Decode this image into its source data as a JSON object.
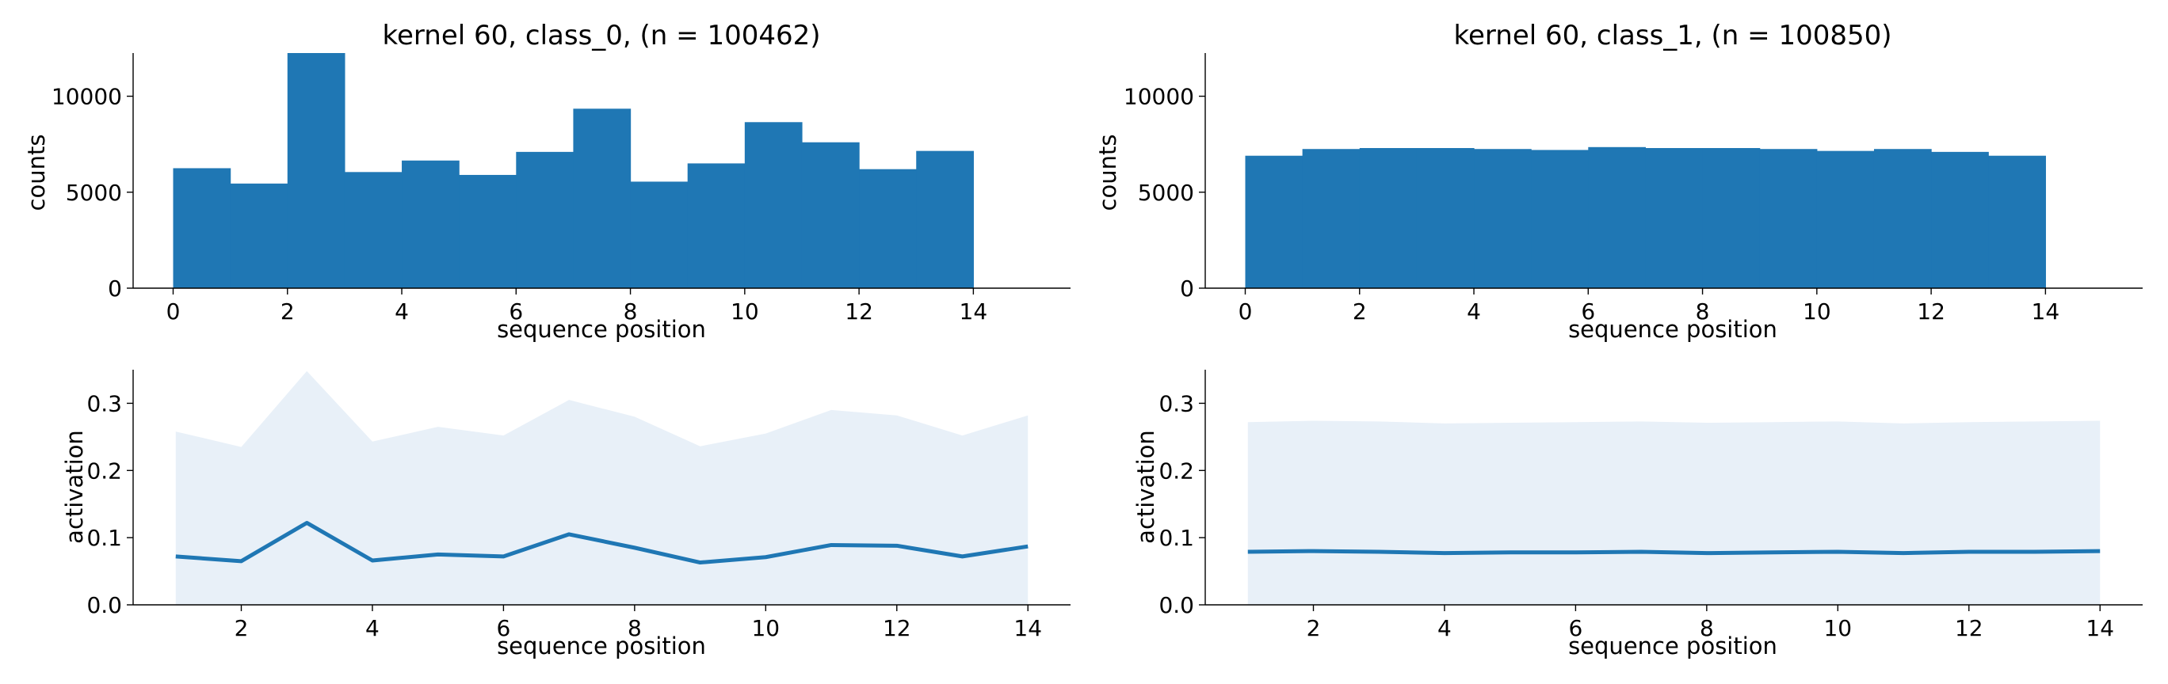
{
  "chart_data": [
    {
      "type": "bar",
      "title": "kernel 60, class_0, (n = 100462)",
      "xlabel": "sequence position",
      "ylabel": "counts",
      "bin_edges": [
        0,
        1,
        2,
        3,
        4,
        5,
        6,
        7,
        8,
        9,
        10,
        11,
        12,
        13,
        14
      ],
      "values": [
        6250,
        5450,
        12250,
        6050,
        6650,
        5900,
        7100,
        9350,
        5550,
        6500,
        8650,
        7600,
        6200,
        7150
      ],
      "xlim": [
        -0.7,
        15.7
      ],
      "ylim": [
        0,
        12250
      ],
      "xticks": [
        "0",
        "2",
        "4",
        "6",
        "8",
        "10",
        "12",
        "14"
      ],
      "yticks": [
        "0",
        "5000",
        "10000"
      ],
      "color": "#1f77b4"
    },
    {
      "type": "bar",
      "title": "kernel 60, class_1, (n = 100850)",
      "xlabel": "sequence position",
      "ylabel": "counts",
      "bin_edges": [
        0,
        1,
        2,
        3,
        4,
        5,
        6,
        7,
        8,
        9,
        10,
        11,
        12,
        13,
        14
      ],
      "values": [
        6900,
        7250,
        7300,
        7300,
        7250,
        7200,
        7350,
        7300,
        7300,
        7250,
        7150,
        7250,
        7100,
        6900
      ],
      "xlim": [
        -0.7,
        15.7
      ],
      "ylim": [
        0,
        12250
      ],
      "xticks": [
        "0",
        "2",
        "4",
        "6",
        "8",
        "10",
        "12",
        "14"
      ],
      "yticks": [
        "0",
        "5000",
        "10000"
      ],
      "color": "#1f77b4"
    },
    {
      "type": "line",
      "xlabel": "sequence position",
      "ylabel": "activation",
      "x": [
        1,
        2,
        3,
        4,
        5,
        6,
        7,
        8,
        9,
        10,
        11,
        12,
        13,
        14
      ],
      "mean": [
        0.072,
        0.065,
        0.122,
        0.066,
        0.075,
        0.072,
        0.105,
        0.085,
        0.063,
        0.071,
        0.089,
        0.088,
        0.072,
        0.087
      ],
      "upper": [
        0.258,
        0.235,
        0.348,
        0.243,
        0.265,
        0.252,
        0.305,
        0.28,
        0.236,
        0.255,
        0.29,
        0.282,
        0.252,
        0.282
      ],
      "lower": [
        0,
        0,
        0,
        0,
        0,
        0,
        0,
        0,
        0,
        0,
        0,
        0,
        0,
        0
      ],
      "xlim": [
        0.35,
        14.65
      ],
      "ylim": [
        0,
        0.35
      ],
      "xticks": [
        "2",
        "4",
        "6",
        "8",
        "10",
        "12",
        "14"
      ],
      "yticks": [
        "0.0",
        "0.1",
        "0.2",
        "0.3"
      ],
      "line_color": "#1f77b4",
      "band_color": "#e8f0f8"
    },
    {
      "type": "line",
      "xlabel": "sequence position",
      "ylabel": "activation",
      "x": [
        1,
        2,
        3,
        4,
        5,
        6,
        7,
        8,
        9,
        10,
        11,
        12,
        13,
        14
      ],
      "mean": [
        0.079,
        0.08,
        0.079,
        0.077,
        0.078,
        0.078,
        0.079,
        0.077,
        0.078,
        0.079,
        0.077,
        0.079,
        0.079,
        0.08
      ],
      "upper": [
        0.272,
        0.274,
        0.273,
        0.27,
        0.271,
        0.272,
        0.273,
        0.271,
        0.272,
        0.273,
        0.27,
        0.272,
        0.273,
        0.274
      ],
      "lower": [
        0,
        0,
        0,
        0,
        0,
        0,
        0,
        0,
        0,
        0,
        0,
        0,
        0,
        0
      ],
      "xlim": [
        0.35,
        14.65
      ],
      "ylim": [
        0,
        0.35
      ],
      "xticks": [
        "2",
        "4",
        "6",
        "8",
        "10",
        "12",
        "14"
      ],
      "yticks": [
        "0.0",
        "0.1",
        "0.2",
        "0.3"
      ],
      "line_color": "#1f77b4",
      "band_color": "#e8f0f8"
    }
  ]
}
